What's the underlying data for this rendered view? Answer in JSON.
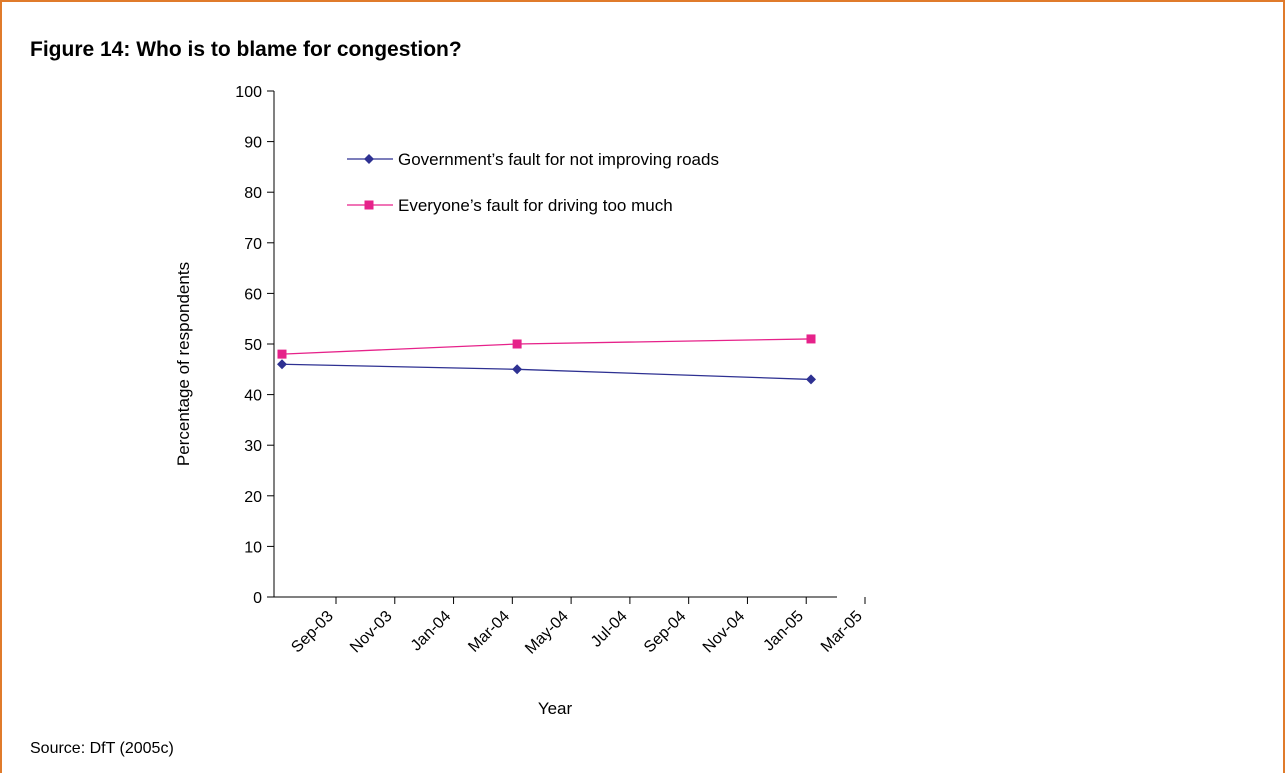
{
  "figure": {
    "title": "Figure 14: Who is to blame for congestion?",
    "source": "Source: DfT (2005c)",
    "border_color": "#e07b2b"
  },
  "chart_data": {
    "type": "line",
    "xlabel": "Year",
    "ylabel": "Percentage of respondents",
    "ylim": [
      0,
      100
    ],
    "y_ticks": [
      0,
      10,
      20,
      30,
      40,
      50,
      60,
      70,
      80,
      90,
      100
    ],
    "x_tick_labels": [
      "Sep-03",
      "Nov-03",
      "Jan-04",
      "Mar-04",
      "May-04",
      "Jul-04",
      "Sep-04",
      "Nov-04",
      "Jan-05",
      "Mar-05"
    ],
    "x": [
      "Sep-03",
      "May-04",
      "Mar-05"
    ],
    "series": [
      {
        "name": "Government’s fault for not improving roads",
        "values": [
          46,
          45,
          43
        ],
        "color": "#2e3192",
        "marker": "diamond"
      },
      {
        "name": "Everyone’s fault for driving too much",
        "values": [
          48,
          50,
          51
        ],
        "color": "#e6228a",
        "marker": "square"
      }
    ],
    "grid": false,
    "legend_position": "top-center"
  }
}
